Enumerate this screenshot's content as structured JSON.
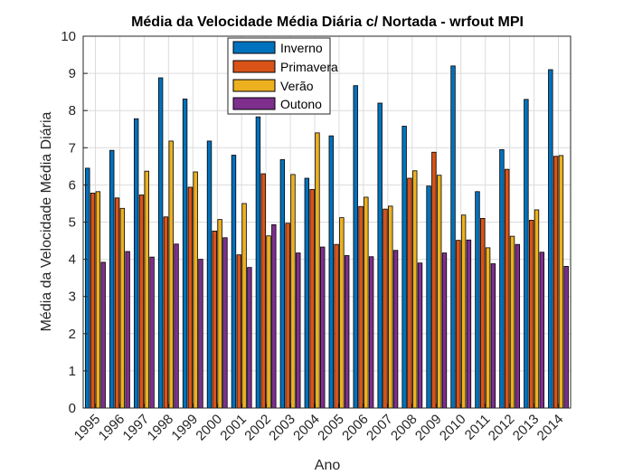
{
  "chart_data": {
    "type": "bar",
    "title": "Média da Velocidade Média Diária c/ Nortada - wrfout MPI",
    "xlabel": "Ano",
    "ylabel": "Média da Velocidade Média Diária",
    "ylim": [
      0,
      10
    ],
    "yticks": [
      "0",
      "1",
      "2",
      "3",
      "4",
      "5",
      "6",
      "7",
      "8",
      "9",
      "10"
    ],
    "grid": true,
    "legend_position": "top-center",
    "categories": [
      "1995",
      "1996",
      "1997",
      "1998",
      "1999",
      "2000",
      "2001",
      "2002",
      "2003",
      "2004",
      "2005",
      "2006",
      "2007",
      "2008",
      "2009",
      "2010",
      "2011",
      "2012",
      "2013",
      "2014"
    ],
    "series": [
      {
        "name": "Inverno",
        "color": "#0072BD",
        "values": [
          6.45,
          6.93,
          7.78,
          8.88,
          8.31,
          7.18,
          6.8,
          7.83,
          6.68,
          6.18,
          7.32,
          8.67,
          8.2,
          7.58,
          5.97,
          9.2,
          5.82,
          6.95,
          8.3,
          9.1
        ]
      },
      {
        "name": "Primavera",
        "color": "#D95319",
        "values": [
          5.78,
          5.65,
          5.73,
          5.14,
          5.94,
          4.76,
          4.12,
          6.3,
          4.97,
          5.88,
          4.4,
          5.42,
          5.35,
          6.18,
          6.88,
          4.51,
          5.1,
          6.42,
          5.05,
          6.77
        ]
      },
      {
        "name": "Verão",
        "color": "#EDB120",
        "values": [
          5.82,
          5.37,
          6.37,
          7.18,
          6.35,
          5.07,
          5.5,
          4.63,
          6.28,
          7.4,
          5.12,
          5.67,
          5.43,
          6.38,
          6.26,
          5.19,
          4.31,
          4.62,
          5.33,
          6.79
        ]
      },
      {
        "name": "Outono",
        "color": "#7E2F8E",
        "values": [
          3.92,
          4.21,
          4.06,
          4.41,
          4.0,
          4.58,
          3.78,
          4.93,
          4.17,
          4.33,
          4.1,
          4.07,
          4.24,
          3.9,
          4.17,
          4.52,
          3.88,
          4.4,
          4.19,
          3.81
        ]
      }
    ]
  }
}
